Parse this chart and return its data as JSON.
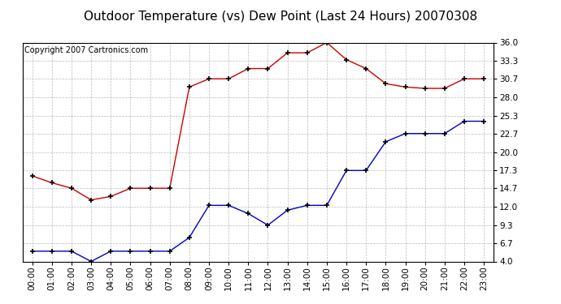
{
  "title": "Outdoor Temperature (vs) Dew Point (Last 24 Hours) 20070308",
  "copyright": "Copyright 2007 Cartronics.com",
  "hours": [
    "00:00",
    "01:00",
    "02:00",
    "03:00",
    "04:00",
    "05:00",
    "06:00",
    "07:00",
    "08:00",
    "09:00",
    "10:00",
    "11:00",
    "12:00",
    "13:00",
    "14:00",
    "15:00",
    "16:00",
    "17:00",
    "18:00",
    "19:00",
    "20:00",
    "21:00",
    "22:00",
    "23:00"
  ],
  "temp": [
    16.5,
    15.5,
    14.7,
    13.0,
    13.5,
    14.7,
    14.7,
    14.7,
    29.5,
    30.7,
    30.7,
    32.2,
    32.2,
    34.5,
    34.5,
    36.0,
    33.5,
    32.2,
    30.0,
    29.5,
    29.3,
    29.3,
    30.7,
    30.7
  ],
  "dew": [
    5.5,
    5.5,
    5.5,
    4.0,
    5.5,
    5.5,
    5.5,
    5.5,
    7.5,
    12.2,
    12.2,
    11.0,
    9.3,
    11.5,
    12.2,
    12.2,
    17.3,
    17.3,
    21.5,
    22.7,
    22.7,
    22.7,
    24.5,
    24.5
  ],
  "temp_color": "#cc0000",
  "dew_color": "#0000cc",
  "bg_color": "#ffffff",
  "grid_color": "#bbbbbb",
  "yticks": [
    4.0,
    6.7,
    9.3,
    12.0,
    14.7,
    17.3,
    20.0,
    22.7,
    25.3,
    28.0,
    30.7,
    33.3,
    36.0
  ],
  "ymin": 4.0,
  "ymax": 36.0,
  "title_fontsize": 11,
  "copyright_fontsize": 7,
  "tick_fontsize": 7.5
}
